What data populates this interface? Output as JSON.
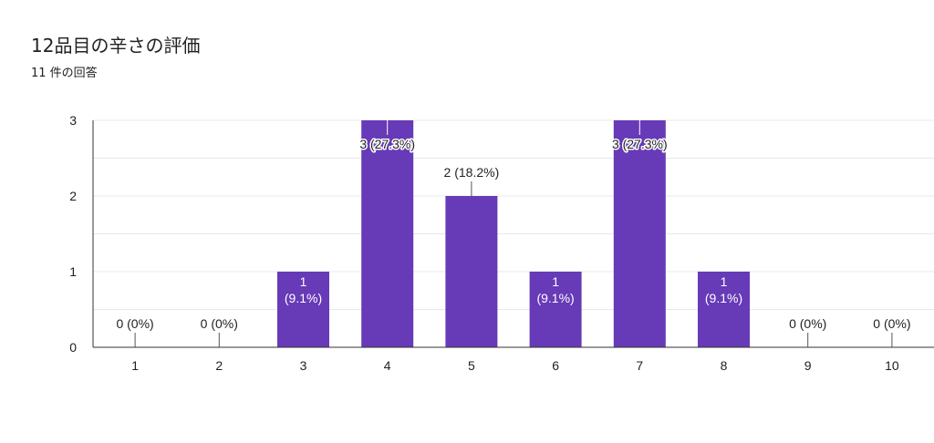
{
  "title": "12品目の辛さの評価",
  "subtitle": "11 件の回答",
  "colors": {
    "bar": "#673ab7",
    "grid": "#e8e8e8",
    "axis": "#333333",
    "text": "#222222"
  },
  "chart_data": {
    "type": "bar",
    "categories": [
      "1",
      "2",
      "3",
      "4",
      "5",
      "6",
      "7",
      "8",
      "9",
      "10"
    ],
    "values": [
      0,
      0,
      1,
      3,
      2,
      1,
      3,
      1,
      0,
      0
    ],
    "data_labels": [
      "0 (0%)",
      "0 (0%)",
      "1 (9.1%)",
      "3 (27.3%)",
      "2 (18.2%)",
      "1 (9.1%)",
      "3 (27.3%)",
      "1 (9.1%)",
      "0 (0%)",
      "0 (0%)"
    ],
    "y_ticks": [
      0,
      1,
      2,
      3
    ],
    "ylim": [
      0,
      3
    ],
    "grid": true
  }
}
